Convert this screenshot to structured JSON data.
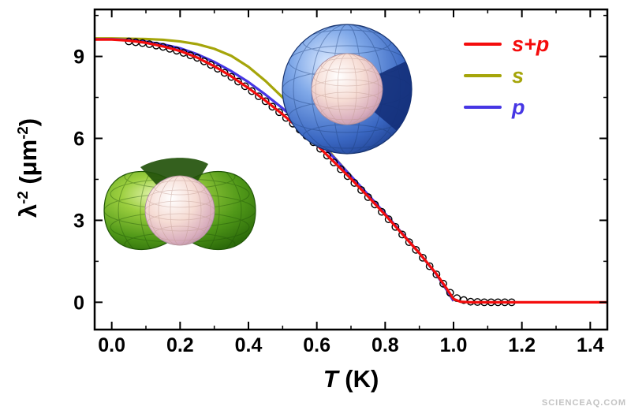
{
  "watermark": "SCIENCEAQ.COM",
  "chart_data": {
    "type": "line",
    "title": "",
    "xlabel_parts": [
      {
        "t": "T",
        "italic": true
      },
      {
        "t": " (K)"
      }
    ],
    "ylabel_parts": [
      {
        "t": "λ"
      },
      {
        "t": "-2",
        "sup": true
      },
      {
        "t": " (μm"
      },
      {
        "t": "-2",
        "sup": true
      },
      {
        "t": ")"
      }
    ],
    "xlim": [
      -0.05,
      1.45
    ],
    "ylim": [
      -1.0,
      10.72
    ],
    "x_ticks": {
      "values": [
        0,
        0.2,
        0.4,
        0.6,
        0.8,
        1.0,
        1.2,
        1.4
      ],
      "labels": [
        "0.0",
        "0.2",
        "0.4",
        "0.6",
        "0.8",
        "1.0",
        "1.2",
        "1.4"
      ]
    },
    "x_minor": [
      0.1,
      0.3,
      0.5,
      0.7,
      0.9,
      1.1,
      1.3
    ],
    "y_ticks": {
      "values": [
        0,
        3,
        6,
        9
      ],
      "labels": [
        "0",
        "3",
        "6",
        "9"
      ]
    },
    "y_minor": [
      1.5,
      4.5,
      7.5,
      10.5
    ],
    "grid": false,
    "legend_position": "top-right",
    "legend": [
      {
        "label": "s+p",
        "color": "#f40c0c"
      },
      {
        "label": "s",
        "color": "#a5a50a"
      },
      {
        "label": "p",
        "color": "#4636e4"
      }
    ],
    "series": [
      {
        "name": "s+p",
        "color": "#f40c0c",
        "width": 3.2,
        "x": [
          -0.05,
          0,
          0.05,
          0.1,
          0.15,
          0.2,
          0.25,
          0.3,
          0.35,
          0.4,
          0.45,
          0.5,
          0.55,
          0.6,
          0.65,
          0.7,
          0.75,
          0.8,
          0.85,
          0.9,
          0.95,
          0.98,
          1.0,
          1.02,
          1.05,
          1.1,
          1.2,
          1.3,
          1.4,
          1.45
        ],
        "y": [
          9.62,
          9.62,
          9.58,
          9.5,
          9.37,
          9.2,
          8.96,
          8.64,
          8.27,
          7.84,
          7.38,
          6.88,
          6.34,
          5.76,
          5.14,
          4.52,
          3.87,
          3.2,
          2.5,
          1.8,
          1.04,
          0.5,
          0.12,
          0.02,
          0,
          0,
          0,
          0,
          0,
          0
        ]
      },
      {
        "name": "s",
        "color": "#a5a50a",
        "width": 3.2,
        "x": [
          -0.05,
          0,
          0.05,
          0.1,
          0.15,
          0.2,
          0.25,
          0.3,
          0.35,
          0.4,
          0.45,
          0.5,
          0.55,
          0.6,
          0.65,
          0.7,
          0.75,
          0.8,
          0.85,
          0.9,
          0.95,
          0.98,
          1.0
        ],
        "y": [
          9.66,
          9.66,
          9.65,
          9.64,
          9.61,
          9.55,
          9.45,
          9.28,
          9.02,
          8.62,
          8.1,
          7.5,
          6.82,
          6.08,
          5.32,
          4.62,
          3.93,
          3.22,
          2.52,
          1.8,
          1.02,
          0.45,
          0.05
        ]
      },
      {
        "name": "p",
        "color": "#4636e4",
        "width": 3.2,
        "x": [
          -0.05,
          0,
          0.05,
          0.1,
          0.15,
          0.2,
          0.25,
          0.3,
          0.35,
          0.4,
          0.45,
          0.5,
          0.55,
          0.6,
          0.65,
          0.7,
          0.75,
          0.8,
          0.85,
          0.9,
          0.95,
          0.98,
          1.0
        ],
        "y": [
          9.63,
          9.63,
          9.6,
          9.54,
          9.44,
          9.3,
          9.08,
          8.8,
          8.46,
          8.06,
          7.6,
          7.1,
          6.54,
          5.94,
          5.3,
          4.62,
          3.94,
          3.24,
          2.52,
          1.8,
          1.02,
          0.45,
          0.05
        ]
      }
    ],
    "data_points": {
      "name": "experimental",
      "marker": "open-circle",
      "color": "#000000",
      "x": [
        0.05,
        0.07,
        0.09,
        0.11,
        0.13,
        0.15,
        0.17,
        0.19,
        0.21,
        0.23,
        0.25,
        0.27,
        0.29,
        0.31,
        0.33,
        0.35,
        0.37,
        0.39,
        0.41,
        0.43,
        0.45,
        0.47,
        0.49,
        0.51,
        0.53,
        0.55,
        0.57,
        0.59,
        0.61,
        0.63,
        0.65,
        0.67,
        0.69,
        0.71,
        0.73,
        0.75,
        0.77,
        0.79,
        0.81,
        0.83,
        0.85,
        0.87,
        0.89,
        0.91,
        0.93,
        0.95,
        0.97,
        0.99,
        1.01,
        1.03,
        1.05,
        1.07,
        1.09,
        1.11,
        1.13,
        1.15,
        1.17
      ],
      "y": [
        9.55,
        9.52,
        9.49,
        9.45,
        9.4,
        9.35,
        9.28,
        9.21,
        9.13,
        9.04,
        8.95,
        8.82,
        8.69,
        8.55,
        8.4,
        8.25,
        8.08,
        7.91,
        7.73,
        7.54,
        7.36,
        7.16,
        6.96,
        6.75,
        6.54,
        6.32,
        6.09,
        5.86,
        5.62,
        5.37,
        5.12,
        4.87,
        4.62,
        4.37,
        4.11,
        3.85,
        3.58,
        3.31,
        3.04,
        2.76,
        2.48,
        2.2,
        1.92,
        1.63,
        1.32,
        1.02,
        0.68,
        0.35,
        0.15,
        0.08,
        0.02,
        0.01,
        0,
        0,
        0,
        0,
        0
      ]
    },
    "insets": [
      {
        "name": "blue-sphere-gap",
        "description": "blue cutaway sphere with inner pearl sphere"
      },
      {
        "name": "green-torus-gap",
        "description": "green dimpled torus-like surface with inner pearl sphere"
      }
    ]
  }
}
